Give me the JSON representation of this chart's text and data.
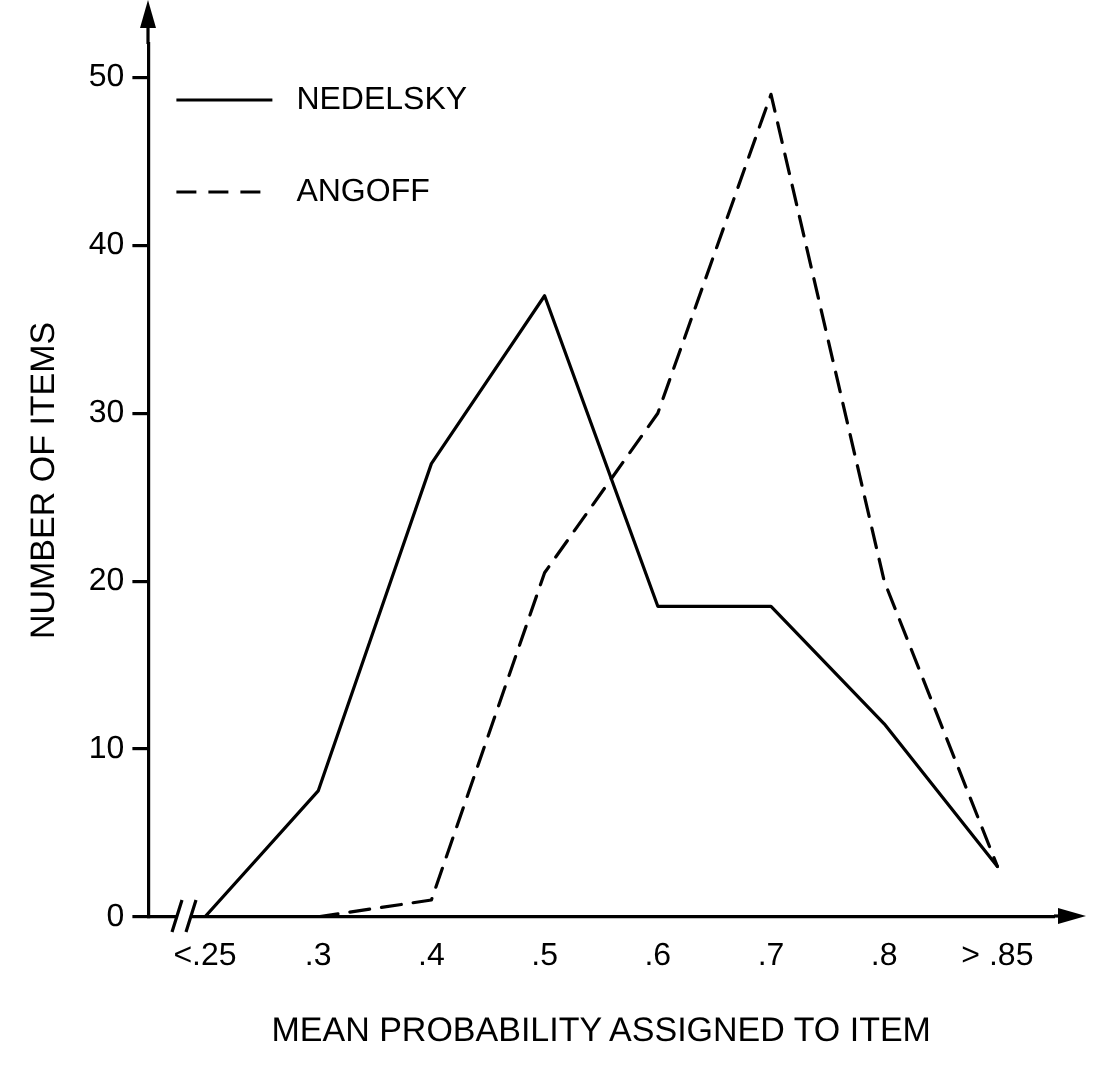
{
  "chart_data": {
    "type": "line",
    "xlabel": "MEAN PROBABILITY ASSIGNED TO ITEM",
    "ylabel": "NUMBER OF ITEMS",
    "categories": [
      "<.25",
      ".3",
      ".4",
      ".5",
      ".6",
      ".7",
      ".8",
      "> .85"
    ],
    "ylim": [
      0,
      52
    ],
    "yticks": [
      0,
      10,
      20,
      30,
      40,
      50
    ],
    "grid": false,
    "legend": "top left",
    "marker": "none",
    "series": [
      {
        "name": "NEDELSKY",
        "color": "#000000",
        "line_style": "solid",
        "values": [
          0,
          7.5,
          27,
          37,
          18.5,
          18.5,
          11.5,
          3
        ]
      },
      {
        "name": "ANGOFF",
        "color": "#000000",
        "line_style": "dashed",
        "values": [
          null,
          0,
          1,
          20.5,
          30,
          49,
          20,
          3
        ]
      }
    ]
  }
}
